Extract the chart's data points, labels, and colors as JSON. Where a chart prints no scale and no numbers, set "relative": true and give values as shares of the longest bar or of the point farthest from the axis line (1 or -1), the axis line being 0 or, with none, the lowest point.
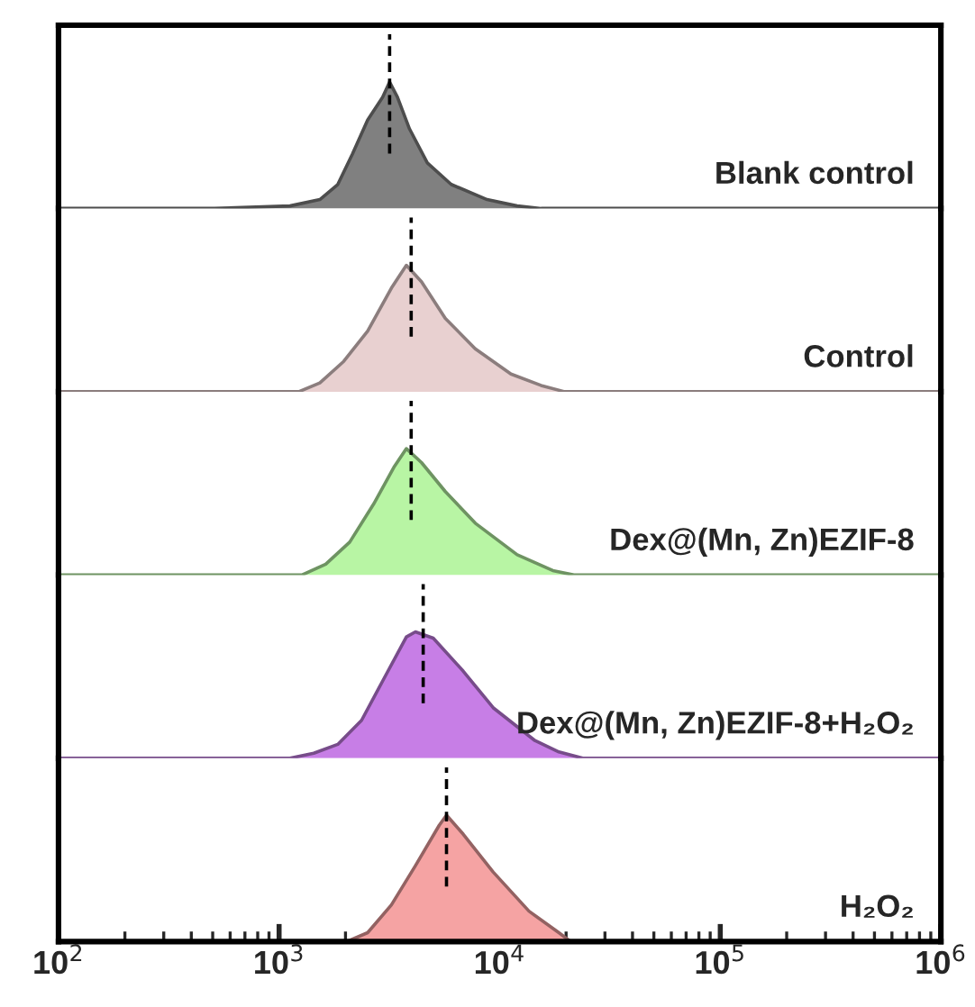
{
  "chart_data": [
    {
      "type": "area",
      "relative": true,
      "log": "x",
      "xlim": [
        100,
        1000000
      ],
      "tick_labels": false,
      "x": [
        100,
        509,
        1120,
        1530,
        1845,
        2150,
        2520,
        2945,
        3170,
        3440,
        3900,
        4700,
        6030,
        8770,
        12000,
        15400,
        1000000
      ],
      "series": [
        {
          "name": "Blank control",
          "color": "#808080",
          "values": [
            0,
            0,
            0.02,
            0.07,
            0.19,
            0.43,
            0.7,
            0.88,
            1,
            0.88,
            0.63,
            0.36,
            0.19,
            0.07,
            0.02,
            0,
            0
          ]
        }
      ],
      "ref_lines": [
        {
          "axis": "x",
          "value": 3170,
          "color": "#000000",
          "line_style": "dashed"
        }
      ]
    },
    {
      "type": "area",
      "relative": true,
      "log": "x",
      "xlim": [
        100,
        1000000
      ],
      "tick_labels": false,
      "x": [
        100,
        1228,
        1530,
        1963,
        2520,
        3230,
        3776,
        4420,
        5670,
        7750,
        11250,
        15400,
        19700,
        1000000
      ],
      "series": [
        {
          "name": "Control",
          "color": "#e8d0d0",
          "values": [
            0,
            0,
            0.07,
            0.24,
            0.48,
            0.82,
            1,
            0.87,
            0.58,
            0.34,
            0.14,
            0.05,
            0,
            0
          ]
        }
      ],
      "ref_lines": [
        {
          "axis": "x",
          "value": 3970,
          "color": "#000000",
          "line_style": "dashed"
        }
      ]
    },
    {
      "type": "area",
      "relative": true,
      "log": "x",
      "xlim": [
        100,
        1000000
      ],
      "tick_labels": false,
      "x": [
        100,
        1268,
        1627,
        2090,
        2680,
        3335,
        3776,
        4420,
        5670,
        7750,
        12000,
        17400,
        21700,
        1000000
      ],
      "series": [
        {
          "name": "Dex@(Mn, Zn)EZIF-8",
          "color": "#b8f5a4",
          "values": [
            0,
            0,
            0.085,
            0.26,
            0.56,
            0.86,
            1,
            0.89,
            0.66,
            0.41,
            0.16,
            0.035,
            0,
            0
          ]
        }
      ],
      "ref_lines": [
        {
          "axis": "x",
          "value": 3970,
          "color": "#000000",
          "line_style": "dashed"
        }
      ]
    },
    {
      "type": "area",
      "relative": true,
      "log": "x",
      "xlim": [
        100,
        1000000
      ],
      "tick_labels": false,
      "x": [
        100,
        1120,
        1436,
        1845,
        2365,
        2945,
        3776,
        4150,
        5000,
        6830,
        9340,
        14450,
        18550,
        23800,
        1000000
      ],
      "series": [
        {
          "name": "Dex@(Mn, Zn)EZIF-8+H₂O₂",
          "color": "#c77ee6",
          "values": [
            0,
            0,
            0.04,
            0.11,
            0.3,
            0.61,
            0.96,
            1,
            0.95,
            0.69,
            0.4,
            0.14,
            0.05,
            0,
            0
          ]
        }
      ],
      "ref_lines": [
        {
          "axis": "x",
          "value": 4500,
          "color": "#000000",
          "line_style": "dashed"
        }
      ]
    },
    {
      "type": "area",
      "relative": true,
      "log": "x",
      "xlim": [
        100,
        1000000
      ],
      "tick_labels": "x",
      "xticks": [
        {
          "value": 100,
          "label": "10$^{2}$"
        },
        {
          "value": 1000,
          "label": "10$^{3}$"
        },
        {
          "value": 10000,
          "label": "10$^{4}$"
        },
        {
          "value": 100000,
          "label": "10$^{5}$"
        },
        {
          "value": 1000000,
          "label": "10$^{6}$"
        }
      ],
      "x": [
        100,
        2025,
        2520,
        3230,
        4150,
        5320,
        5740,
        6830,
        9340,
        13580,
        18550,
        21000,
        1000000
      ],
      "series": [
        {
          "name": "H₂O₂",
          "color": "#f5a3a3",
          "values": [
            0,
            0,
            0.07,
            0.29,
            0.6,
            0.92,
            1,
            0.85,
            0.55,
            0.24,
            0.07,
            0,
            0
          ]
        }
      ],
      "ref_lines": [
        {
          "axis": "x",
          "value": 5740,
          "color": "#000000",
          "line_style": "dashed"
        }
      ]
    }
  ]
}
